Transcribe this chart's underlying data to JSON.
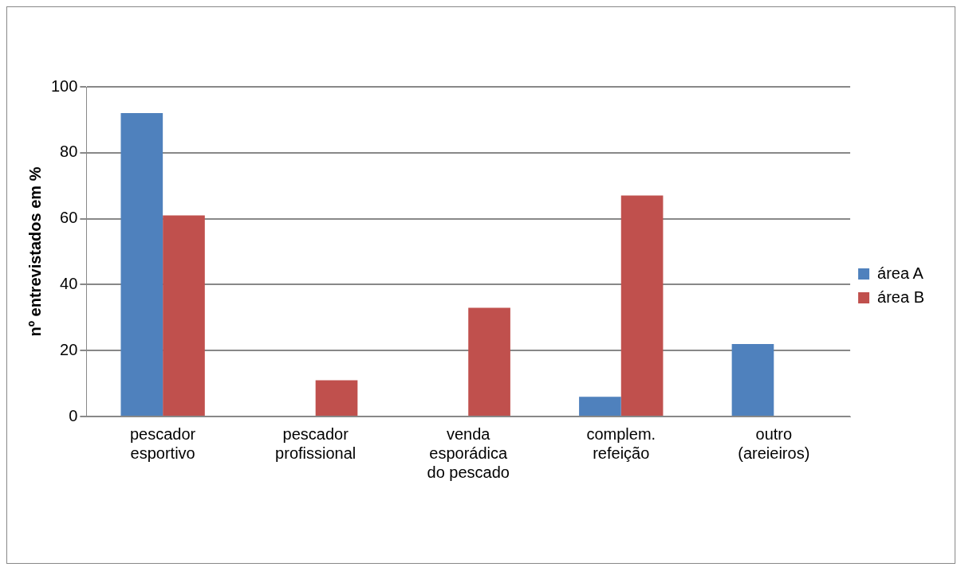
{
  "chart_data": {
    "type": "bar",
    "ylabel": "nº entrevistados em %",
    "categories": [
      "pescador esportivo",
      "pescador profissional",
      "venda esporádica do pescado",
      "complem. refeição",
      "outro (areieiros)"
    ],
    "series": [
      {
        "name": "área A",
        "color": "#4f81bd",
        "values": [
          92,
          0,
          0,
          6,
          22
        ]
      },
      {
        "name": "área B",
        "color": "#c0504d",
        "values": [
          61,
          11,
          33,
          67,
          0
        ]
      }
    ],
    "ylim": [
      0,
      100
    ],
    "yticks": [
      0,
      20,
      40,
      60,
      80,
      100
    ],
    "grid": "y",
    "legend": "right"
  }
}
